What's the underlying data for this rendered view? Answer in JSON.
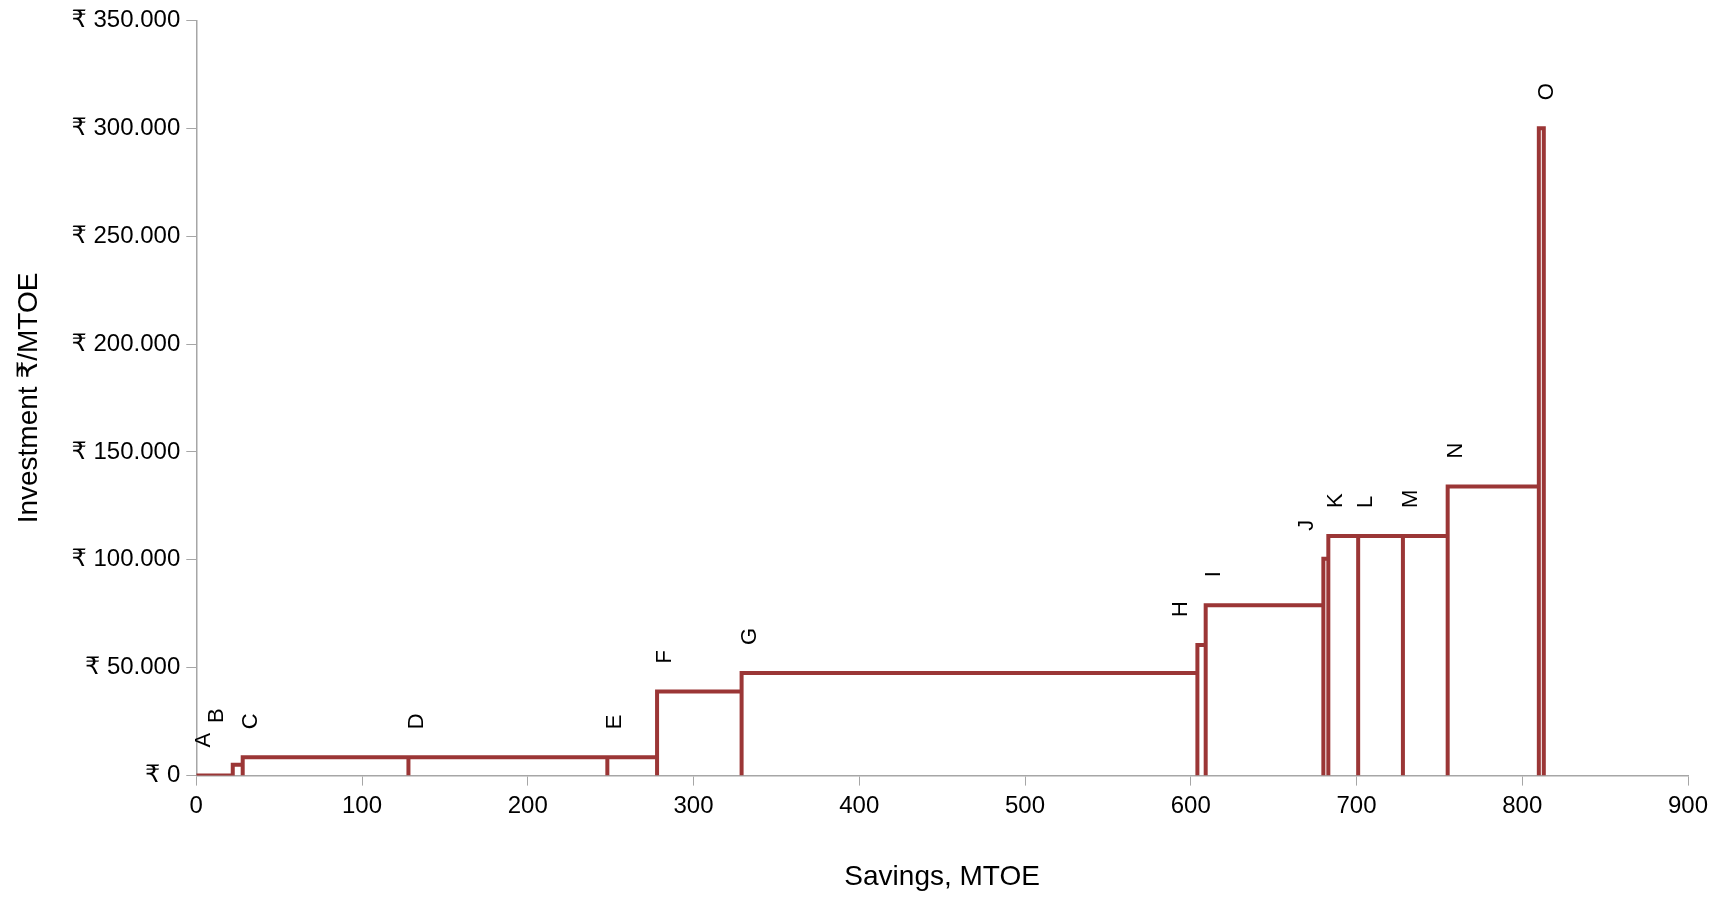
{
  "chart_data": {
    "type": "line",
    "xlabel": "Savings, MTOE",
    "ylabel": "Investment ₹/MTOE",
    "xlim": [
      0,
      900
    ],
    "xticks": [
      0,
      100,
      200,
      300,
      400,
      500,
      600,
      700,
      800,
      900
    ],
    "ylim": [
      0,
      350000
    ],
    "yticks": [
      {
        "value": 0,
        "label": "₹ 0"
      },
      {
        "value": 50000,
        "label": "₹ 50.000"
      },
      {
        "value": 100000,
        "label": "₹ 100.000"
      },
      {
        "value": 150000,
        "label": "₹ 150.000"
      },
      {
        "value": 200000,
        "label": "₹ 200.000"
      },
      {
        "value": 250000,
        "label": "₹ 250.000"
      },
      {
        "value": 300000,
        "label": "₹ 300.000"
      },
      {
        "value": 350000,
        "label": "₹ 350.000"
      }
    ],
    "grid": false,
    "legend": false,
    "series": [
      {
        "color": "#9b3636",
        "x": [
          0,
          22,
          22,
          28,
          28,
          28,
          128,
          128,
          128,
          248,
          248,
          248,
          278,
          278,
          278,
          329,
          329,
          329,
          604,
          604,
          604,
          609,
          609,
          609,
          680,
          680,
          680,
          683,
          683,
          683,
          701,
          701,
          701,
          728,
          728,
          728,
          755,
          755,
          755,
          810,
          810,
          810,
          813,
          813
        ],
        "values": [
          0,
          0,
          5000,
          5000,
          0,
          8500,
          8500,
          0,
          8500,
          8500,
          0,
          8500,
          8500,
          0,
          39000,
          39000,
          0,
          47500,
          47500,
          0,
          60500,
          60500,
          0,
          79000,
          79000,
          0,
          100500,
          100500,
          0,
          111000,
          111000,
          0,
          111000,
          111000,
          0,
          111000,
          111000,
          0,
          134000,
          134000,
          0,
          300000,
          300000,
          0
        ]
      }
    ],
    "annotations": [
      {
        "text": "A",
        "x": 0,
        "y": 0
      },
      {
        "text": "B",
        "x": 22,
        "y": 5000
      },
      {
        "text": "C",
        "x": 28,
        "y": 8500
      },
      {
        "text": "D",
        "x": 128,
        "y": 8500
      },
      {
        "text": "E",
        "x": 248,
        "y": 8500
      },
      {
        "text": "F",
        "x": 278,
        "y": 39000
      },
      {
        "text": "G",
        "x": 329,
        "y": 47500
      },
      {
        "text": "H",
        "x": 604,
        "y": 60500
      },
      {
        "text": "I",
        "x": 609,
        "y": 79000
      },
      {
        "text": "J",
        "x": 680,
        "y": 100500
      },
      {
        "text": "K",
        "x": 683,
        "y": 111000
      },
      {
        "text": "L",
        "x": 701,
        "y": 111000
      },
      {
        "text": "M",
        "x": 728,
        "y": 111000
      },
      {
        "text": "N",
        "x": 755,
        "y": 134000
      },
      {
        "text": "O",
        "x": 810,
        "y": 300000
      }
    ]
  }
}
